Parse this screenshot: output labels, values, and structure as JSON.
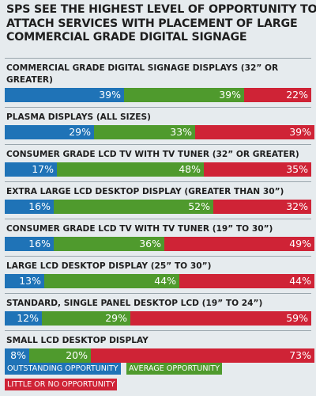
{
  "chart_data": {
    "type": "bar",
    "orientation": "horizontal",
    "stacked": true,
    "title_lines": [
      "SPS SEE THE HIGHEST LEVEL OF OPPORTUNITY TO",
      "ATTACH SERVICES WITH PLACEMENT OF LARGE",
      "COMMERCIAL GRADE DIGITAL SIGNAGE"
    ],
    "categories": [
      "COMMERCIAL GRADE DIGITAL SIGNAGE DISPLAYS (32” OR GREATER)",
      "PLASMA DISPLAYS (ALL SIZES)",
      "CONSUMER GRADE LCD TV WITH TV TUNER (32” OR GREATER)",
      "EXTRA LARGE LCD DESKTOP DISPLAY (GREATER THAN 30”)",
      "CONSUMER GRADE LCD TV WITH TV TUNER (19” TO 30”)",
      "LARGE LCD DESKTOP DISPLAY (25” TO 30”)",
      "STANDARD, SINGLE PANEL DESKTOP LCD (19” TO 24”)",
      "SMALL LCD DESKTOP DISPLAY"
    ],
    "category_lines": [
      [
        "COMMERCIAL GRADE DIGITAL SIGNAGE DISPLAYS (32” OR",
        "GREATER)"
      ],
      [
        "PLASMA DISPLAYS (ALL SIZES)"
      ],
      [
        "CONSUMER GRADE LCD TV WITH TV TUNER (32” OR GREATER)"
      ],
      [
        "EXTRA LARGE LCD DESKTOP DISPLAY (GREATER THAN 30”)"
      ],
      [
        "CONSUMER GRADE LCD TV WITH TV TUNER (19” TO 30”)"
      ],
      [
        "LARGE LCD DESKTOP DISPLAY (25” TO 30”)"
      ],
      [
        "STANDARD, SINGLE PANEL DESKTOP LCD (19” TO 24”)"
      ],
      [
        "SMALL LCD DESKTOP DISPLAY"
      ]
    ],
    "series": [
      {
        "name": "OUTSTANDING OPPORTUNITY",
        "color": "#1f73b7",
        "values": [
          39,
          29,
          17,
          16,
          16,
          13,
          12,
          8
        ]
      },
      {
        "name": "AVERAGE OPPORTUNITY",
        "color": "#4f9a2d",
        "values": [
          39,
          33,
          48,
          52,
          36,
          44,
          29,
          20
        ]
      },
      {
        "name": "LITTLE OR NO OPPORTUNITY",
        "color": "#cf2336",
        "values": [
          22,
          39,
          35,
          32,
          49,
          44,
          59,
          73
        ]
      }
    ],
    "value_suffix": "%",
    "xlim": [
      0,
      100
    ],
    "legend_position": "bottom-left"
  },
  "colors": {
    "background": "#e6ebee",
    "outstanding": "#1f73b7",
    "average": "#4f9a2d",
    "little": "#cf2336"
  }
}
